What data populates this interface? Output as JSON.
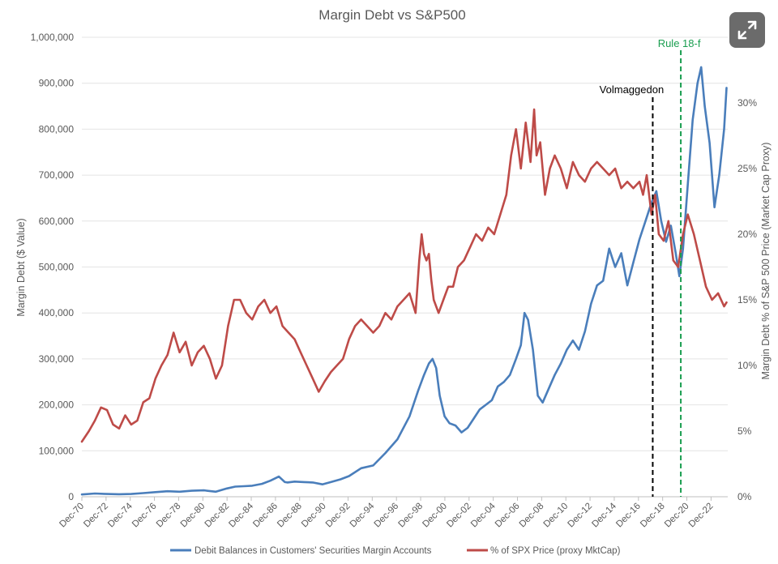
{
  "expand_button": {
    "icon": "expand-icon"
  },
  "chart_data": {
    "type": "line",
    "title": "Margin Debt vs S&P500",
    "ylabel": "Margin Debt ($ Value)",
    "y2label": "Margin Debt % of S&P 500 Price (Market Cap Proxy)",
    "ylim": [
      0,
      1000000
    ],
    "y2lim": [
      0,
      0.35
    ],
    "xlim": [
      1970.92,
      2024.3
    ],
    "y_ticks": [
      0,
      100000,
      200000,
      300000,
      400000,
      500000,
      600000,
      700000,
      800000,
      900000,
      1000000
    ],
    "y_tick_labels": [
      "0",
      "100,000",
      "200,000",
      "300,000",
      "400,000",
      "500,000",
      "600,000",
      "700,000",
      "800,000",
      "900,000",
      "1,000,000"
    ],
    "y2_ticks": [
      0,
      0.05,
      0.1,
      0.15,
      0.2,
      0.25,
      0.3
    ],
    "y2_tick_labels": [
      "0%",
      "5%",
      "10%",
      "15%",
      "20%",
      "25%",
      "30%"
    ],
    "x_ticks": [
      1970.92,
      1972.92,
      1974.92,
      1976.92,
      1978.92,
      1980.92,
      1982.92,
      1984.92,
      1986.92,
      1988.92,
      1990.92,
      1992.92,
      1994.92,
      1996.92,
      1998.92,
      2000.92,
      2002.92,
      2004.92,
      2006.92,
      2008.92,
      2010.92,
      2012.92,
      2014.92,
      2016.92,
      2018.92,
      2020.92,
      2022.92
    ],
    "x_tick_labels": [
      "Dec-70",
      "Dec-72",
      "Dec-74",
      "Dec-76",
      "Dec-78",
      "Dec-80",
      "Dec-82",
      "Dec-84",
      "Dec-86",
      "Dec-88",
      "Dec-90",
      "Dec-92",
      "Dec-94",
      "Dec-96",
      "Dec-98",
      "Dec-00",
      "Dec-02",
      "Dec-04",
      "Dec-06",
      "Dec-08",
      "Dec-10",
      "Dec-12",
      "Dec-14",
      "Dec-16",
      "Dec-18",
      "Dec-20",
      "Dec-22"
    ],
    "series": [
      {
        "name": "Debit Balances in Customers' Securities Margin Accounts",
        "axis": "left",
        "color": "#4a7ebb",
        "x": [
          1970.92,
          1972.0,
          1973.0,
          1974.0,
          1975.0,
          1976.0,
          1977.0,
          1978.0,
          1979.0,
          1980.0,
          1981.0,
          1982.0,
          1982.9,
          1983.6,
          1984.3,
          1985.0,
          1985.8,
          1986.5,
          1987.2,
          1987.7,
          1987.9,
          1988.5,
          1989.3,
          1990.0,
          1990.8,
          1991.5,
          1992.3,
          1993.0,
          1994.0,
          1995.0,
          1996.0,
          1997.0,
          1998.0,
          1998.7,
          1999.2,
          1999.6,
          1999.9,
          2000.2,
          2000.5,
          2000.9,
          2001.3,
          2001.8,
          2002.3,
          2002.8,
          2003.3,
          2003.8,
          2004.3,
          2004.8,
          2005.3,
          2005.8,
          2006.3,
          2006.8,
          2007.2,
          2007.5,
          2007.8,
          2008.2,
          2008.6,
          2009.0,
          2009.5,
          2010.0,
          2010.5,
          2011.0,
          2011.5,
          2012.0,
          2012.5,
          2013.0,
          2013.5,
          2014.0,
          2014.5,
          2015.0,
          2015.5,
          2016.0,
          2016.5,
          2017.0,
          2017.5,
          2018.0,
          2018.4,
          2018.8,
          2019.2,
          2019.6,
          2020.0,
          2020.3,
          2020.6,
          2021.0,
          2021.4,
          2021.8,
          2022.1,
          2022.4,
          2022.8,
          2023.2,
          2023.6,
          2024.0,
          2024.2
        ],
        "values": [
          5000,
          7000,
          6000,
          5500,
          6000,
          8000,
          10000,
          12000,
          11000,
          13000,
          14000,
          11000,
          18000,
          22000,
          23000,
          24000,
          28000,
          35000,
          44000,
          32000,
          31000,
          33000,
          32000,
          31000,
          27000,
          32000,
          38000,
          45000,
          62000,
          68000,
          95000,
          125000,
          175000,
          230000,
          265000,
          290000,
          300000,
          280000,
          220000,
          175000,
          160000,
          155000,
          140000,
          150000,
          170000,
          190000,
          200000,
          210000,
          240000,
          250000,
          265000,
          300000,
          330000,
          400000,
          385000,
          320000,
          220000,
          205000,
          235000,
          265000,
          290000,
          320000,
          340000,
          320000,
          360000,
          420000,
          460000,
          470000,
          540000,
          500000,
          530000,
          460000,
          510000,
          560000,
          600000,
          640000,
          665000,
          600000,
          555000,
          590000,
          530000,
          480000,
          540000,
          680000,
          820000,
          900000,
          935000,
          850000,
          770000,
          630000,
          700000,
          800000,
          890000
        ]
      },
      {
        "name": "% of SPX Price (proxy MktCap)",
        "axis": "right",
        "color": "#be4b48",
        "x": [
          1970.92,
          1971.5,
          1972.0,
          1972.5,
          1973.0,
          1973.5,
          1974.0,
          1974.5,
          1975.0,
          1975.5,
          1976.0,
          1976.5,
          1977.0,
          1977.5,
          1978.0,
          1978.5,
          1979.0,
          1979.5,
          1980.0,
          1980.5,
          1981.0,
          1981.5,
          1982.0,
          1982.5,
          1983.0,
          1983.5,
          1984.0,
          1984.5,
          1985.0,
          1985.5,
          1986.0,
          1986.5,
          1987.0,
          1987.5,
          1988.0,
          1988.5,
          1989.0,
          1989.5,
          1990.0,
          1990.5,
          1991.0,
          1991.5,
          1992.0,
          1992.5,
          1993.0,
          1993.5,
          1994.0,
          1994.5,
          1995.0,
          1995.5,
          1996.0,
          1996.5,
          1997.0,
          1997.5,
          1998.0,
          1998.5,
          1998.8,
          1999.0,
          1999.2,
          1999.4,
          1999.6,
          1999.8,
          2000.0,
          2000.4,
          2000.8,
          2001.2,
          2001.6,
          2002.0,
          2002.5,
          2003.0,
          2003.5,
          2004.0,
          2004.5,
          2005.0,
          2005.5,
          2006.0,
          2006.4,
          2006.8,
          2007.2,
          2007.6,
          2008.0,
          2008.3,
          2008.5,
          2008.8,
          2009.2,
          2009.6,
          2010.0,
          2010.5,
          2011.0,
          2011.5,
          2012.0,
          2012.5,
          2013.0,
          2013.5,
          2014.0,
          2014.5,
          2015.0,
          2015.5,
          2016.0,
          2016.5,
          2017.0,
          2017.3,
          2017.6,
          2018.0,
          2018.3,
          2018.6,
          2019.0,
          2019.4,
          2019.8,
          2020.2,
          2020.6,
          2021.0,
          2021.5,
          2022.0,
          2022.5,
          2023.0,
          2023.5,
          2024.0,
          2024.2
        ],
        "values": [
          0.042,
          0.05,
          0.058,
          0.068,
          0.066,
          0.055,
          0.052,
          0.062,
          0.055,
          0.058,
          0.072,
          0.075,
          0.09,
          0.1,
          0.108,
          0.125,
          0.11,
          0.118,
          0.1,
          0.11,
          0.115,
          0.105,
          0.09,
          0.1,
          0.13,
          0.15,
          0.15,
          0.14,
          0.135,
          0.145,
          0.15,
          0.14,
          0.145,
          0.13,
          0.125,
          0.12,
          0.11,
          0.1,
          0.09,
          0.08,
          0.088,
          0.095,
          0.1,
          0.105,
          0.12,
          0.13,
          0.135,
          0.13,
          0.125,
          0.13,
          0.14,
          0.135,
          0.145,
          0.15,
          0.155,
          0.14,
          0.18,
          0.2,
          0.185,
          0.18,
          0.185,
          0.165,
          0.15,
          0.14,
          0.15,
          0.16,
          0.16,
          0.175,
          0.18,
          0.19,
          0.2,
          0.195,
          0.205,
          0.2,
          0.215,
          0.23,
          0.26,
          0.28,
          0.25,
          0.285,
          0.255,
          0.295,
          0.26,
          0.27,
          0.23,
          0.25,
          0.26,
          0.25,
          0.235,
          0.255,
          0.245,
          0.24,
          0.25,
          0.255,
          0.25,
          0.245,
          0.25,
          0.235,
          0.24,
          0.235,
          0.24,
          0.23,
          0.245,
          0.215,
          0.23,
          0.2,
          0.195,
          0.21,
          0.18,
          0.175,
          0.2,
          0.215,
          0.2,
          0.18,
          0.16,
          0.15,
          0.155,
          0.145,
          0.148
        ]
      }
    ],
    "annotations": [
      {
        "label": "Volmaggedon",
        "x": 2018.1,
        "style": "dashed",
        "color": "#000000"
      },
      {
        "label": "Rule 18-f",
        "x": 2020.42,
        "style": "dashed",
        "color": "#1a9e50"
      }
    ],
    "legend": "bottom",
    "grid": true
  }
}
